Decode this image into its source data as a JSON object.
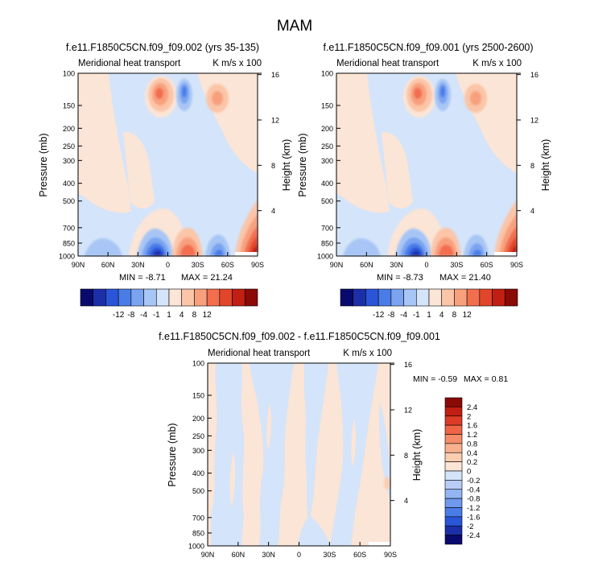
{
  "figure": {
    "title": "MAM"
  },
  "palettes": {
    "panel_colors": [
      "#0a0a6e",
      "#1c2fa8",
      "#2a55d8",
      "#4a7ce8",
      "#7aa4f0",
      "#a8c6f5",
      "#d4e4fa",
      "#fbe5d6",
      "#fbc5a8",
      "#f8a07e",
      "#f26e4f",
      "#e2462a",
      "#c01f12",
      "#8a0a06"
    ],
    "panel_levels": [
      "-12",
      "-8",
      "-4",
      "-1",
      "1",
      "4",
      "8",
      "12"
    ],
    "diff_colors": [
      "#0a0a6e",
      "#1c2fa8",
      "#2a55d8",
      "#4a7ce8",
      "#6f98ee",
      "#93b5f2",
      "#b7cdf7",
      "#d4e4fa",
      "#fbe5d6",
      "#fbcdb0",
      "#f8b08f",
      "#f58c68",
      "#ef6446",
      "#dc3b26",
      "#c01f12",
      "#8a0a06"
    ],
    "diff_levels": [
      "2.4",
      "2",
      "1.6",
      "1.2",
      "0.8",
      "0.4",
      "0.2",
      "0",
      "-0.2",
      "-0.4",
      "-0.8",
      "-1.2",
      "-1.6",
      "-2",
      "-2.4"
    ]
  },
  "chart_data": [
    {
      "type": "contour",
      "title": "f.e11.F1850C5CN.f09_f09.002 (yrs 35-135)",
      "left_string": "Meridional heat transport",
      "right_string": "K m/s x 100",
      "ylabel": "Pressure (mb)",
      "ylabel_right": "Height (km)",
      "x_ticks": [
        "90N",
        "60N",
        "30N",
        "0",
        "30S",
        "60S",
        "90S"
      ],
      "x_values": [
        90,
        60,
        30,
        0,
        -30,
        -60,
        -90
      ],
      "y_ticks": [
        "100",
        "150",
        "200",
        "250",
        "300",
        "400",
        "500",
        "700",
        "850",
        "1000"
      ],
      "y_values": [
        100,
        150,
        200,
        250,
        300,
        400,
        500,
        700,
        850,
        1000
      ],
      "height_ticks": [
        "16",
        "12",
        "8",
        "4"
      ],
      "height_values": [
        16,
        12,
        8,
        4
      ],
      "ylim": [
        1000,
        100
      ],
      "xlim": [
        90,
        -90
      ],
      "min_label": "MIN = -8.71",
      "max_label": "MAX = 21.24",
      "min": -8.71,
      "max": 21.24,
      "features": [
        {
          "lat": 7,
          "p": 200,
          "value": 9
        },
        {
          "lat": -15,
          "p": 200,
          "value": -5
        },
        {
          "lat": -52,
          "p": 220,
          "value": 3
        },
        {
          "lat": 10,
          "p": 990,
          "value": -8.71
        },
        {
          "lat": -15,
          "p": 990,
          "value": 8
        },
        {
          "lat": -50,
          "p": 990,
          "value": -3
        },
        {
          "lat": 40,
          "p": 990,
          "value": -2
        },
        {
          "lat": -87,
          "p": 990,
          "value": 21.24
        }
      ]
    },
    {
      "type": "contour",
      "title": "f.e11.F1850C5CN.f09_f09.001 (yrs 2500-2600)",
      "left_string": "Meridional heat transport",
      "right_string": "K m/s x 100",
      "ylabel": "Pressure (mb)",
      "ylabel_right": "Height (km)",
      "x_ticks": [
        "90N",
        "60N",
        "30N",
        "0",
        "30S",
        "60S",
        "90S"
      ],
      "x_values": [
        90,
        60,
        30,
        0,
        -30,
        -60,
        -90
      ],
      "y_ticks": [
        "100",
        "150",
        "200",
        "250",
        "300",
        "400",
        "500",
        "700",
        "850",
        "1000"
      ],
      "y_values": [
        100,
        150,
        200,
        250,
        300,
        400,
        500,
        700,
        850,
        1000
      ],
      "height_ticks": [
        "16",
        "12",
        "8",
        "4"
      ],
      "height_values": [
        16,
        12,
        8,
        4
      ],
      "ylim": [
        1000,
        100
      ],
      "xlim": [
        90,
        -90
      ],
      "min_label": "MIN = -8.73",
      "max_label": "MAX = 21.40",
      "min": -8.73,
      "max": 21.4,
      "features": [
        {
          "lat": 7,
          "p": 200,
          "value": 9
        },
        {
          "lat": -15,
          "p": 200,
          "value": -5
        },
        {
          "lat": -52,
          "p": 220,
          "value": 3
        },
        {
          "lat": 10,
          "p": 990,
          "value": -8.73
        },
        {
          "lat": -15,
          "p": 990,
          "value": 8
        },
        {
          "lat": -50,
          "p": 990,
          "value": -3
        },
        {
          "lat": 40,
          "p": 990,
          "value": -2
        },
        {
          "lat": -87,
          "p": 990,
          "value": 21.4
        }
      ]
    },
    {
      "type": "contour",
      "title": "f.e11.F1850C5CN.f09_f09.002 - f.e11.F1850C5CN.f09_f09.001",
      "left_string": "Meridional heat transport",
      "right_string": "K m/s x 100",
      "ylabel": "Pressure (mb)",
      "ylabel_right": "Height (km)",
      "x_ticks": [
        "90N",
        "60N",
        "30N",
        "0",
        "30S",
        "60S",
        "90S"
      ],
      "x_values": [
        90,
        60,
        30,
        0,
        -30,
        -60,
        -90
      ],
      "y_ticks": [
        "100",
        "150",
        "200",
        "250",
        "300",
        "400",
        "500",
        "700",
        "850",
        "1000"
      ],
      "y_values": [
        100,
        150,
        200,
        250,
        300,
        400,
        500,
        700,
        850,
        1000
      ],
      "height_ticks": [
        "16",
        "12",
        "8",
        "4"
      ],
      "height_values": [
        16,
        12,
        8,
        4
      ],
      "ylim": [
        1000,
        100
      ],
      "xlim": [
        90,
        -90
      ],
      "min_label": "MIN = -0.59",
      "max_label": "MAX = 0.81",
      "min": -0.59,
      "max": 0.81
    }
  ]
}
